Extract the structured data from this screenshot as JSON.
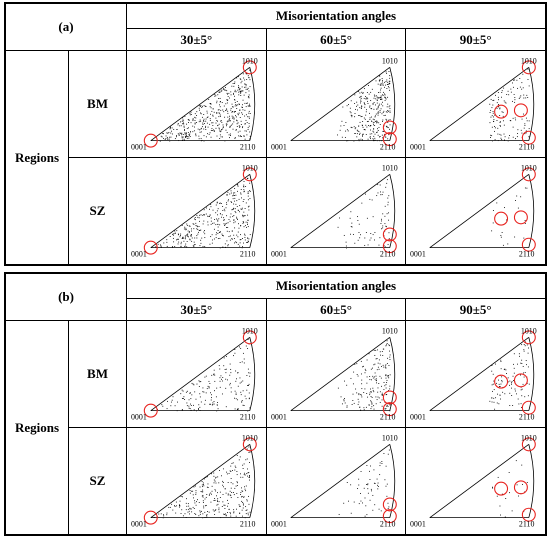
{
  "panels": [
    {
      "label": "(a)",
      "header": "Misorientation angles",
      "angles": [
        "30±5°",
        "60±5°",
        "90±5°"
      ],
      "regions_label": "Regions",
      "rows": [
        "BM",
        "SZ"
      ],
      "density": [
        [
          0.9,
          0.6,
          0.25
        ],
        [
          0.7,
          0.15,
          0.04
        ]
      ]
    },
    {
      "label": "(b)",
      "header": "Misorientation angles",
      "angles": [
        "30±5°",
        "60±5°",
        "90±5°"
      ],
      "regions_label": "Regions",
      "rows": [
        "BM",
        "SZ"
      ],
      "density": [
        [
          0.35,
          0.35,
          0.2
        ],
        [
          0.55,
          0.12,
          0.04
        ]
      ]
    }
  ],
  "pole_figure": {
    "origin_label": "0001",
    "top_label": "1010",
    "right_label": "2110",
    "circle_color": "#e8231f"
  }
}
